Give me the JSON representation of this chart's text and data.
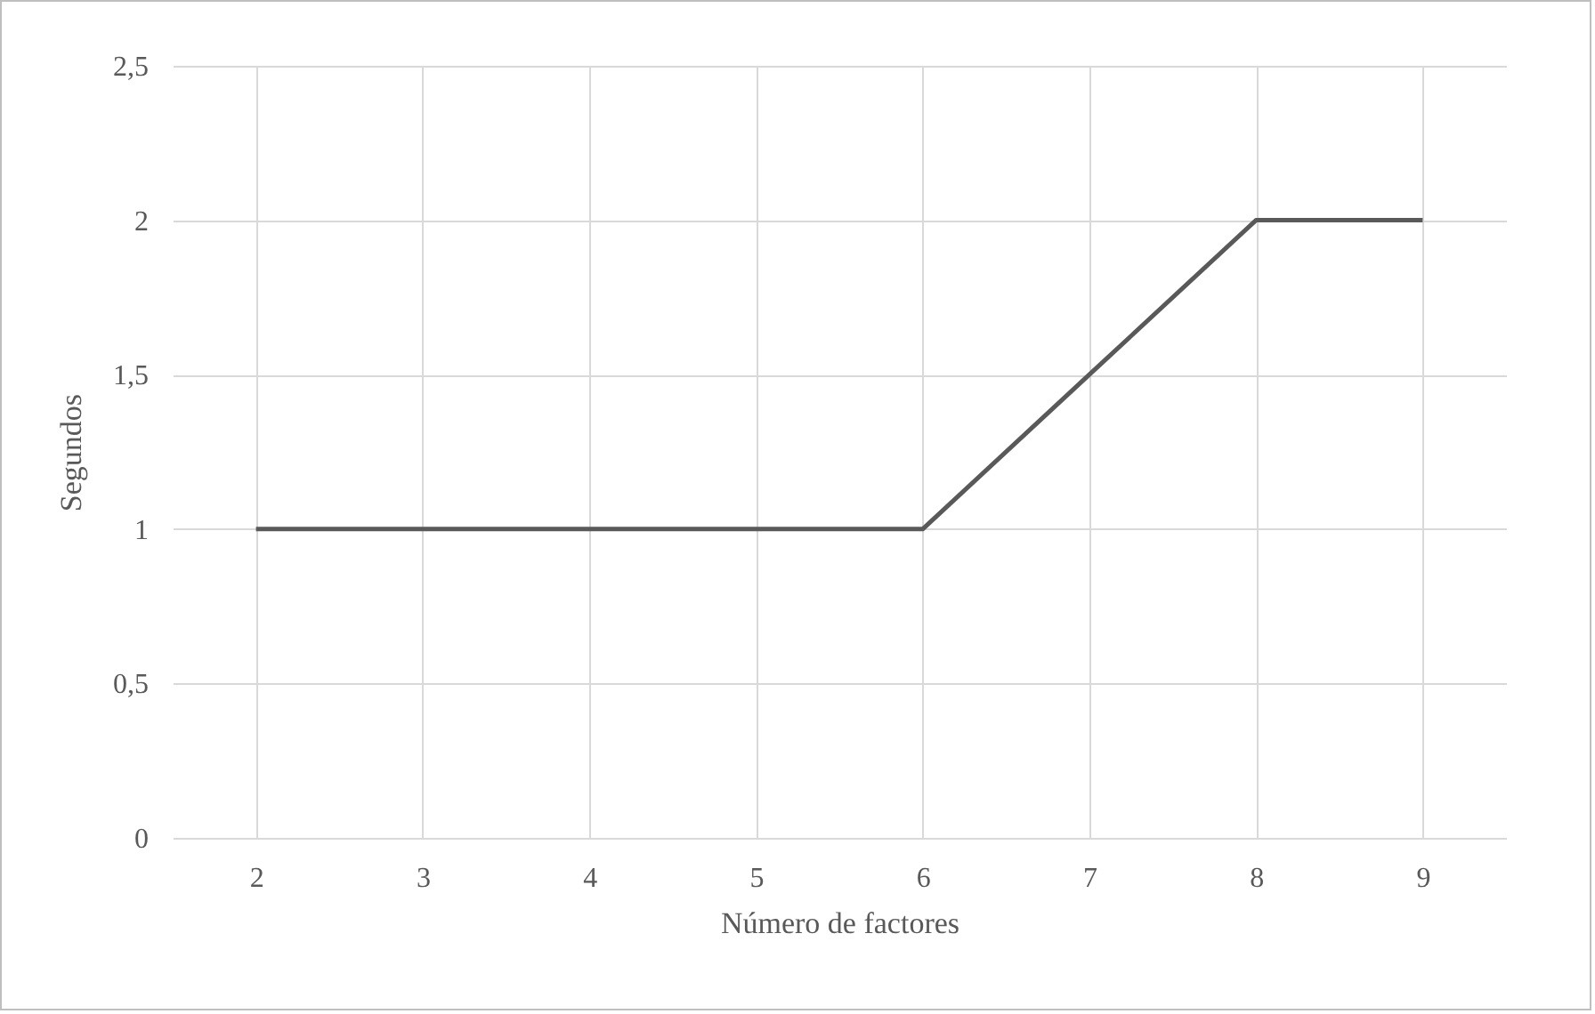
{
  "chart_data": {
    "type": "line",
    "xlabel": "Número de factores",
    "ylabel": "Segundos",
    "categories": [
      "2",
      "3",
      "4",
      "5",
      "6",
      "7",
      "8",
      "9"
    ],
    "series": [
      {
        "color": "#595959",
        "values": [
          1,
          1,
          1,
          1,
          1,
          1.5,
          2,
          2
        ]
      }
    ],
    "ylim": [
      0,
      2.5
    ],
    "yticks": [
      0,
      {
        "value": 0.5,
        "label": "0,5"
      },
      1,
      {
        "value": 1.5,
        "label": "1,5"
      },
      2,
      {
        "value": 2.5,
        "label": "2,5"
      }
    ],
    "grid": true,
    "legend": false,
    "marker": "none",
    "line_style": "solid"
  }
}
